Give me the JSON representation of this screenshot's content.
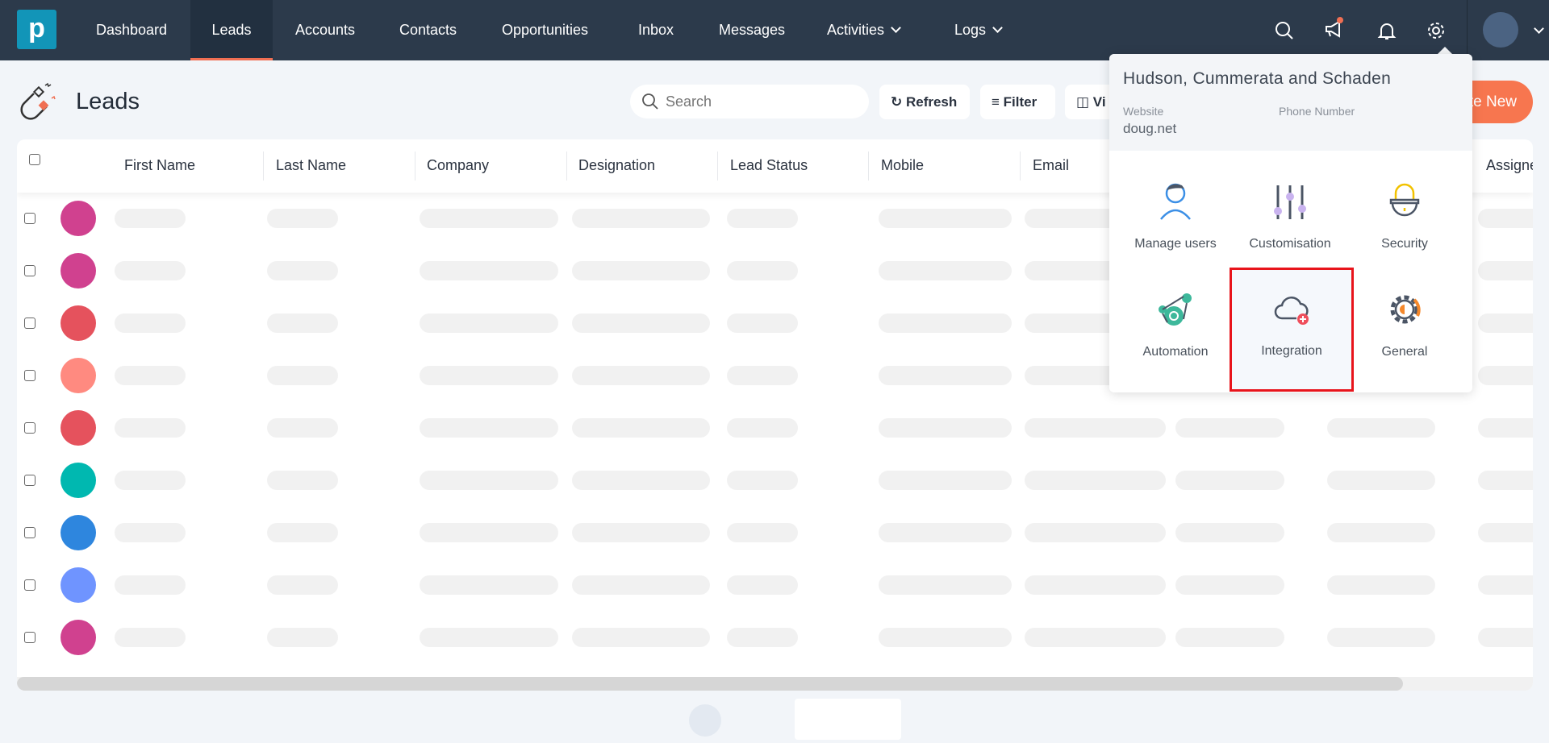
{
  "nav": {
    "logo": "p",
    "items": [
      {
        "label": "Dashboard"
      },
      {
        "label": "Leads",
        "active": true
      },
      {
        "label": "Accounts"
      },
      {
        "label": "Contacts"
      },
      {
        "label": "Opportunities"
      },
      {
        "label": "Inbox"
      },
      {
        "label": "Messages"
      },
      {
        "label": "Activities",
        "dropdown": true
      },
      {
        "label": "Logs",
        "dropdown": true
      }
    ],
    "icons": [
      "search-icon",
      "megaphone-icon",
      "bell-icon",
      "gear-icon"
    ],
    "notification_dot_color": "#f06f53"
  },
  "page": {
    "title": "Leads",
    "search_placeholder": "Search",
    "refresh_label": "Refresh",
    "filter_label": "Filter",
    "view_label": "Vi",
    "create_label": "te New",
    "accent": "#f7764f"
  },
  "table": {
    "columns": [
      "First Name",
      "Last Name",
      "Company",
      "Designation",
      "Lead Status",
      "Mobile",
      "Email",
      "",
      "",
      "Assigne"
    ],
    "row_avatar_colors": [
      "#d0418f",
      "#d0418f",
      "#e5525d",
      "#ff8a80",
      "#e5525d",
      "#00b8b0",
      "#2e86de",
      "#6f94ff",
      "#d0418f"
    ],
    "loading": true
  },
  "settings_popup": {
    "company": "Hudson, Cummerata and Schaden",
    "website_label": "Website",
    "website": "doug.net",
    "phone_label": "Phone Number",
    "tiles": [
      {
        "label": "Manage users",
        "icon": "user-icon"
      },
      {
        "label": "Customisation",
        "icon": "sliders-icon"
      },
      {
        "label": "Security",
        "icon": "lock-icon"
      },
      {
        "label": "Automation",
        "icon": "automation-icon"
      },
      {
        "label": "Integration",
        "icon": "cloud-plus-icon",
        "highlighted": true
      },
      {
        "label": "General",
        "icon": "general-gear-icon"
      }
    ]
  }
}
